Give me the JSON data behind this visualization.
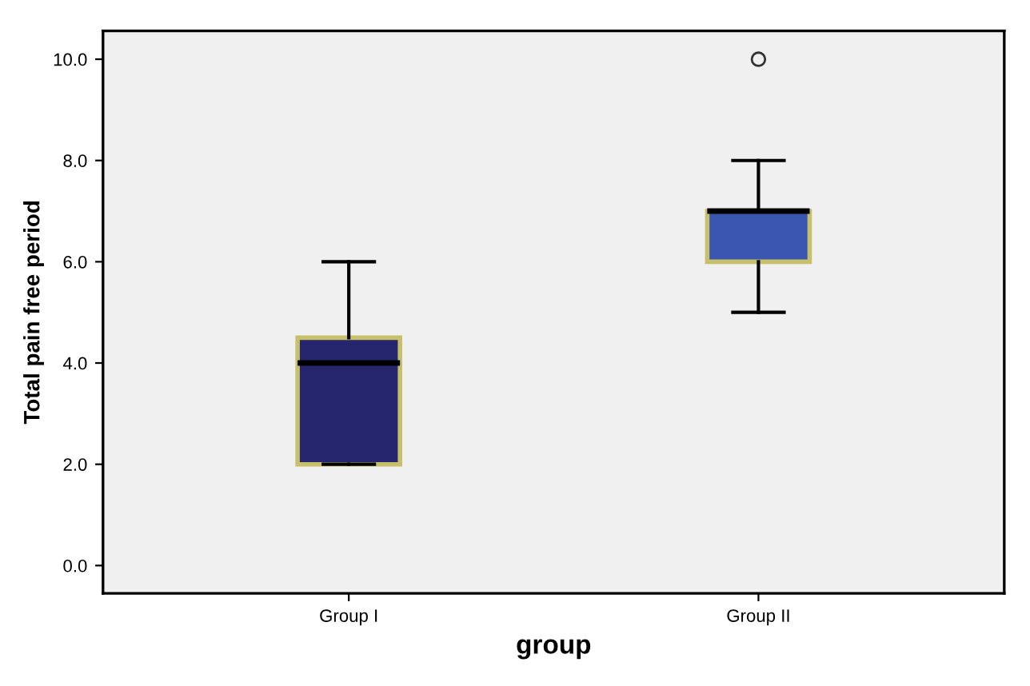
{
  "chart_data": {
    "type": "box",
    "xlabel": "group",
    "ylabel": "Total pain free period",
    "categories": [
      "Group I",
      "Group II"
    ],
    "boxes": [
      {
        "low": 2,
        "q1": 2,
        "median": 4,
        "q3": 4.5,
        "high": 6
      },
      {
        "low": 5,
        "q1": 6,
        "median": 7,
        "q3": 7,
        "high": 8,
        "outliers": [
          10
        ]
      }
    ],
    "colors": [
      "#26266e",
      "#3a56b0"
    ],
    "ylim": [
      -0.55,
      10.56
    ],
    "yticks": [
      {
        "value": 0,
        "label": "0.0"
      },
      {
        "value": 2,
        "label": "2.0"
      },
      {
        "value": 4,
        "label": "4.0"
      },
      {
        "value": 6,
        "label": "6.0"
      },
      {
        "value": 8,
        "label": "8.0"
      },
      {
        "value": 10,
        "label": "10.0"
      }
    ],
    "grid": false
  }
}
